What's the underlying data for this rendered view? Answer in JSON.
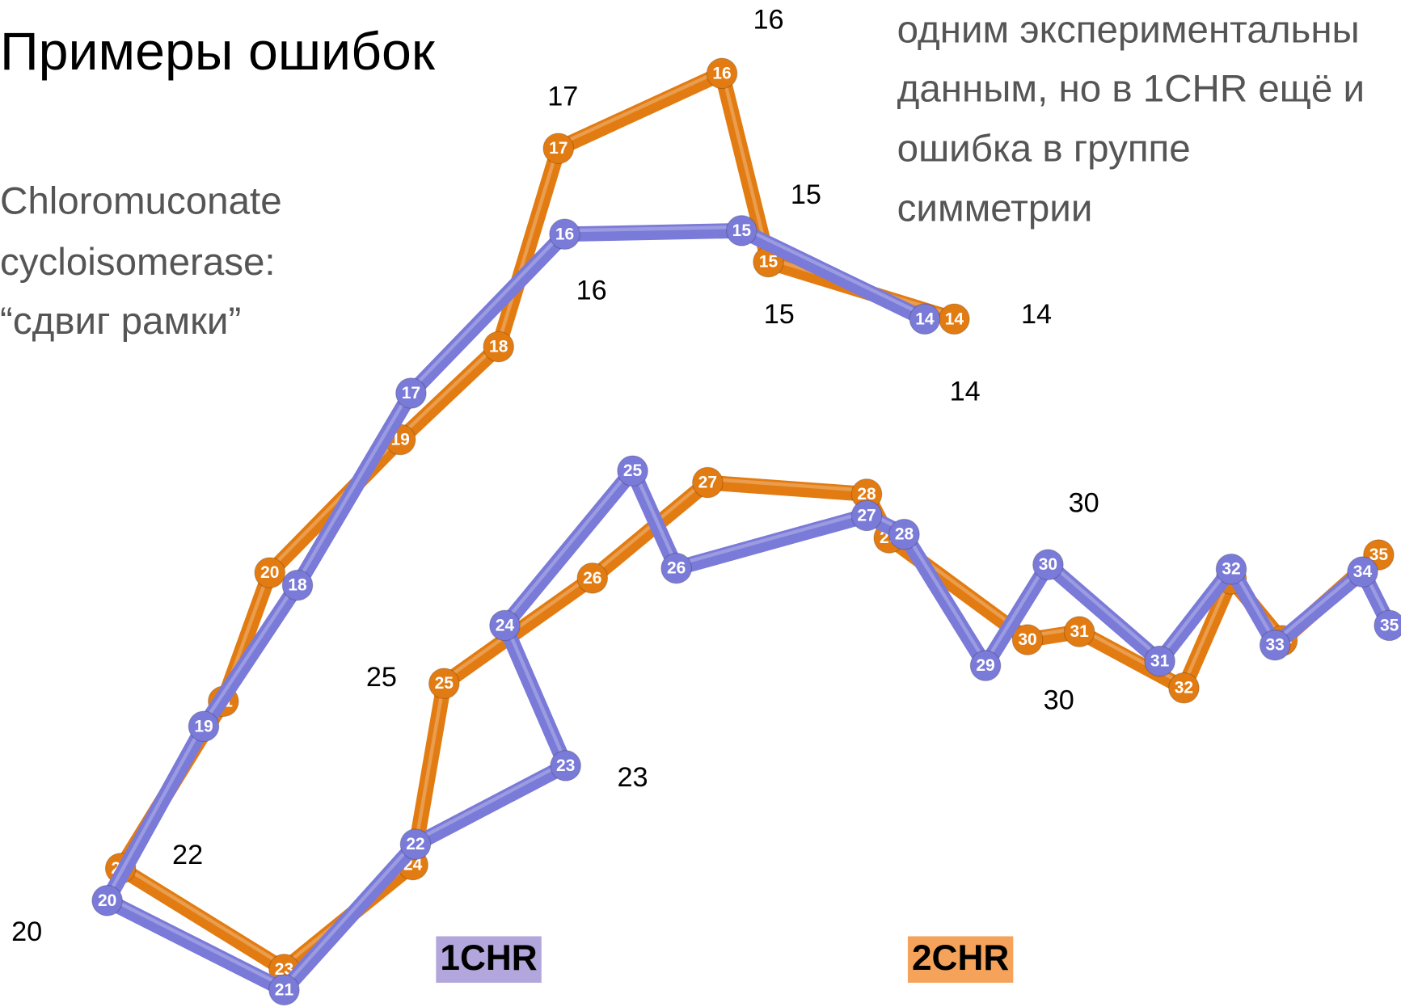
{
  "title": "Примеры ошибок",
  "description": [
    "Chloromuconate",
    "cycloisomerase:",
    "“сдвиг рамки”"
  ],
  "note": [
    "одним экспериментальны",
    "данным, но в 1CHR ещё и",
    "ошибка в группе",
    "симметрии"
  ],
  "legend": [
    "1CHR",
    "2CHR"
  ],
  "chains": [
    {
      "name": "1CHR",
      "color": "#7a7ad8",
      "labels": [
        "14",
        "15",
        "16",
        "17",
        "18",
        "19",
        "20",
        "21",
        "22",
        "23",
        "24",
        "25",
        "26",
        "27",
        "28",
        "29",
        "30",
        "31",
        "32",
        "33",
        "34",
        "35"
      ]
    },
    {
      "name": "2CHR",
      "color": "#e27c12",
      "labels": [
        "14",
        "15",
        "16",
        "17",
        "18",
        "19",
        "20",
        "21",
        "22",
        "23",
        "24",
        "25",
        "26",
        "27",
        "28",
        "29",
        "30",
        "31",
        "32",
        "33",
        "34",
        "35"
      ]
    }
  ],
  "residue_labels": [
    "16",
    "17",
    "15",
    "16",
    "15",
    "14",
    "14",
    "30",
    "25",
    "30",
    "23",
    "22",
    "20"
  ]
}
